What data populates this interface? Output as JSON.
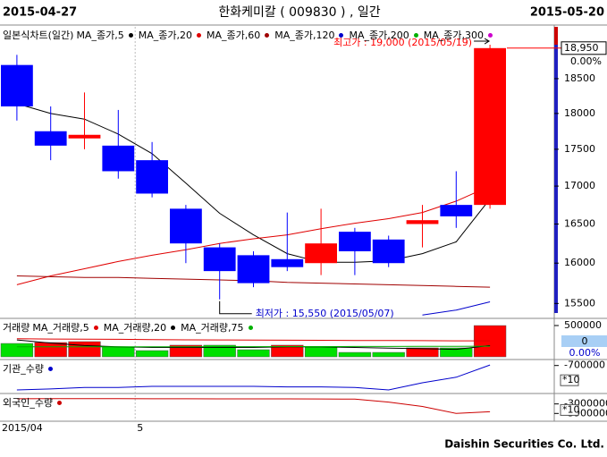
{
  "header": {
    "start_date": "2015-04-27",
    "title": "한화케미칼 ( 009830 ) , 일간",
    "end_date": "2015-05-20"
  },
  "footer": {
    "brand": "Daishin Securities Co. Ltd."
  },
  "chart_data": [
    {
      "type": "candlestick",
      "title": "일본식차트(일간)",
      "categories": [
        "2015/04",
        null,
        null,
        null,
        "5",
        null,
        null,
        null,
        null,
        null,
        null,
        null,
        null,
        null,
        null
      ],
      "open": [
        18700,
        17750,
        17650,
        17550,
        17350,
        16700,
        16200,
        16100,
        16050,
        16000,
        16400,
        16300,
        16500,
        16750,
        16750
      ],
      "high": [
        18850,
        18100,
        18300,
        18050,
        17600,
        16750,
        16250,
        16150,
        16650,
        16700,
        16450,
        16350,
        16750,
        17200,
        19000
      ],
      "low": [
        17900,
        17350,
        17500,
        17100,
        16850,
        16000,
        15550,
        15700,
        15900,
        15850,
        15850,
        15950,
        16200,
        16450,
        16700
      ],
      "close": [
        18100,
        17550,
        17700,
        17200,
        16900,
        16250,
        15900,
        15750,
        15950,
        16250,
        16150,
        16000,
        16550,
        16600,
        18950
      ],
      "up_color": "#ff0000",
      "down_color": "#0000ff",
      "series": [
        {
          "name": "MA_종가,5",
          "color": "#000000",
          "values": [
            18140,
            18000,
            17920,
            17710,
            17440,
            17040,
            16640,
            16360,
            16120,
            16010,
            16010,
            16030,
            16120,
            16270,
            16830
          ]
        },
        {
          "name": "MA_종가,20",
          "color": "#e00000",
          "values": [
            15730,
            15840,
            15930,
            16020,
            16100,
            16170,
            16250,
            16310,
            16360,
            16440,
            16510,
            16570,
            16650,
            16800,
            17000
          ]
        },
        {
          "name": "MA_종가,60",
          "color": "#a00000",
          "values": [
            15840,
            15830,
            15820,
            15820,
            15810,
            15800,
            15790,
            15780,
            15760,
            15750,
            15740,
            15730,
            15720,
            15710,
            15700
          ]
        },
        {
          "name": "MA_종가,120",
          "color": "#0000cc",
          "values": [
            null,
            null,
            null,
            null,
            null,
            null,
            null,
            null,
            null,
            null,
            null,
            null,
            15360,
            15420,
            15520
          ]
        },
        {
          "name": "MA_종가,200",
          "color": "#00b000",
          "values": [
            null,
            null,
            null,
            null,
            null,
            null,
            null,
            null,
            null,
            null,
            null,
            null,
            null,
            null,
            null
          ]
        },
        {
          "name": "MA_종가,300",
          "color": "#cc00cc",
          "values": [
            null,
            null,
            null,
            null,
            null,
            null,
            null,
            null,
            null,
            null,
            null,
            null,
            null,
            null,
            null
          ]
        }
      ],
      "ylim": [
        15330,
        19270
      ],
      "yticks": [
        15500,
        16000,
        16500,
        17000,
        17500,
        18000,
        18500
      ],
      "log_scale": true,
      "grid": false,
      "current_price": {
        "value": 18950,
        "label": "18,950"
      },
      "change": {
        "value": 0,
        "label": "0.00%"
      },
      "annotations": [
        {
          "text": "최고가 : 19,000 (2015/05/19)",
          "value": 19000,
          "color": "#ff0000"
        },
        {
          "text": "최저가 : 15,550 (2015/05/07)",
          "value": 15550,
          "color": "#0000cc"
        }
      ]
    },
    {
      "type": "bar",
      "title": "거래량",
      "values": [
        214000,
        229000,
        243000,
        157000,
        100000,
        186000,
        186000,
        114000,
        186000,
        157000,
        71000,
        71000,
        143000,
        143000,
        500000
      ],
      "colors": [
        "#00e000",
        "#ff0000",
        "#ff0000",
        "#00e000",
        "#00e000",
        "#ff0000",
        "#00e000",
        "#00e000",
        "#ff0000",
        "#00e000",
        "#00e000",
        "#00e000",
        "#ff0000",
        "#00e000",
        "#ff0000"
      ],
      "series": [
        {
          "name": "MA_거래량,5",
          "color": "#e00000",
          "values": [
            290000,
            285000,
            283000,
            280000,
            276000,
            272000,
            270000,
            268000,
            266000,
            264000,
            262000,
            260000,
            258000,
            256000,
            255000
          ]
        },
        {
          "name": "MA_거래량,20",
          "color": "#000000",
          "values": [
            270000,
            220000,
            180000,
            160000,
            150000,
            150000,
            150000,
            150000,
            160000,
            160000,
            150000,
            140000,
            130000,
            120000,
            180000
          ]
        },
        {
          "name": "MA_거래량,75",
          "color": "#00b000",
          "values": [
            160000,
            160000,
            160000,
            160000,
            162000,
            162000,
            163000,
            163000,
            164000,
            164000,
            165000,
            166000,
            167000,
            168000,
            170000
          ]
        }
      ],
      "ylim": [
        0,
        600000
      ],
      "yticks": [
        500000
      ],
      "current_value": 0,
      "change": {
        "value": 0,
        "label": "0.00%"
      }
    },
    {
      "type": "line",
      "title": "기관_수량",
      "color": "#0000cc",
      "values": [
        -1180000,
        -1160000,
        -1130000,
        -1130000,
        -1110000,
        -1110000,
        -1110000,
        -1110000,
        -1120000,
        -1120000,
        -1130000,
        -1180000,
        -1040000,
        -930000,
        -690000
      ],
      "ylim": [
        -1250000,
        -600000
      ],
      "yticks": [
        -700000
      ],
      "unit": "*10"
    },
    {
      "type": "line",
      "title": "외국인_수량",
      "color": "#cc0000",
      "values": [
        -2510000,
        -2500000,
        -2500000,
        -2500000,
        -2510000,
        -2510000,
        -2520000,
        -2520000,
        -2520000,
        -2530000,
        -2550000,
        -2830000,
        -3240000,
        -3900000,
        -3740000
      ],
      "ylim": [
        -4550000,
        -2100000
      ],
      "yticks": [
        -3000000,
        -3900000
      ],
      "unit": "*10"
    }
  ]
}
